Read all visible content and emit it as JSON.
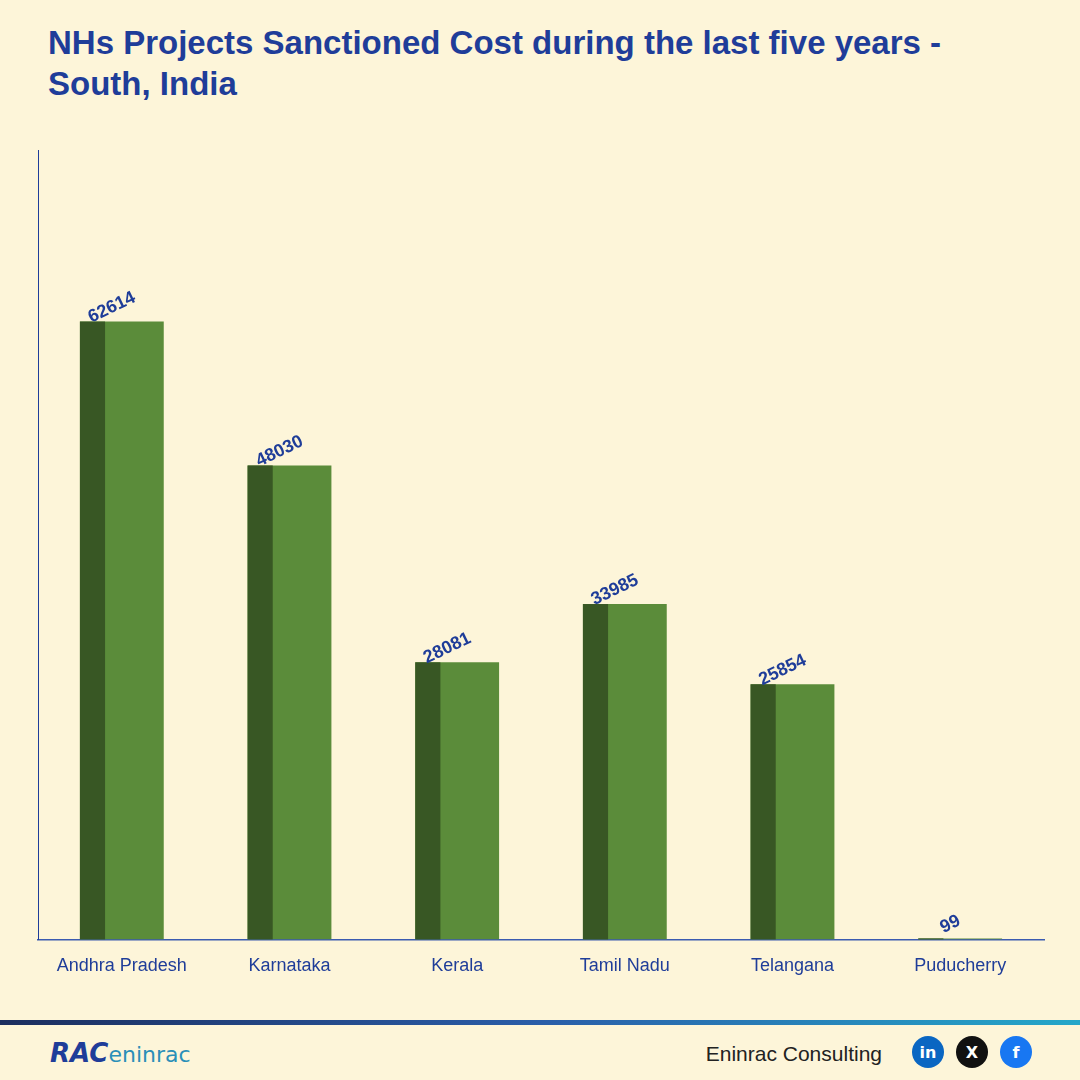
{
  "chart_data": {
    "type": "bar",
    "title": "NHs Projects Sanctioned Cost during the last five years - South, India",
    "categories": [
      "Andhra Pradesh",
      "Karnataka",
      "Kerala",
      "Tamil Nadu",
      "Telangana",
      "Puducherry"
    ],
    "values": [
      62614,
      48030,
      28081,
      33985,
      25854,
      99
    ],
    "color": "#5b8c3a",
    "ylim": [
      0,
      80000
    ],
    "grid": false,
    "data_labels": true,
    "tick_labels": "x"
  },
  "footer": {
    "logo": [
      "RAC",
      "eninrac"
    ],
    "text": "Eninrac Consulting",
    "icons": [
      "in",
      "X",
      "f"
    ]
  }
}
